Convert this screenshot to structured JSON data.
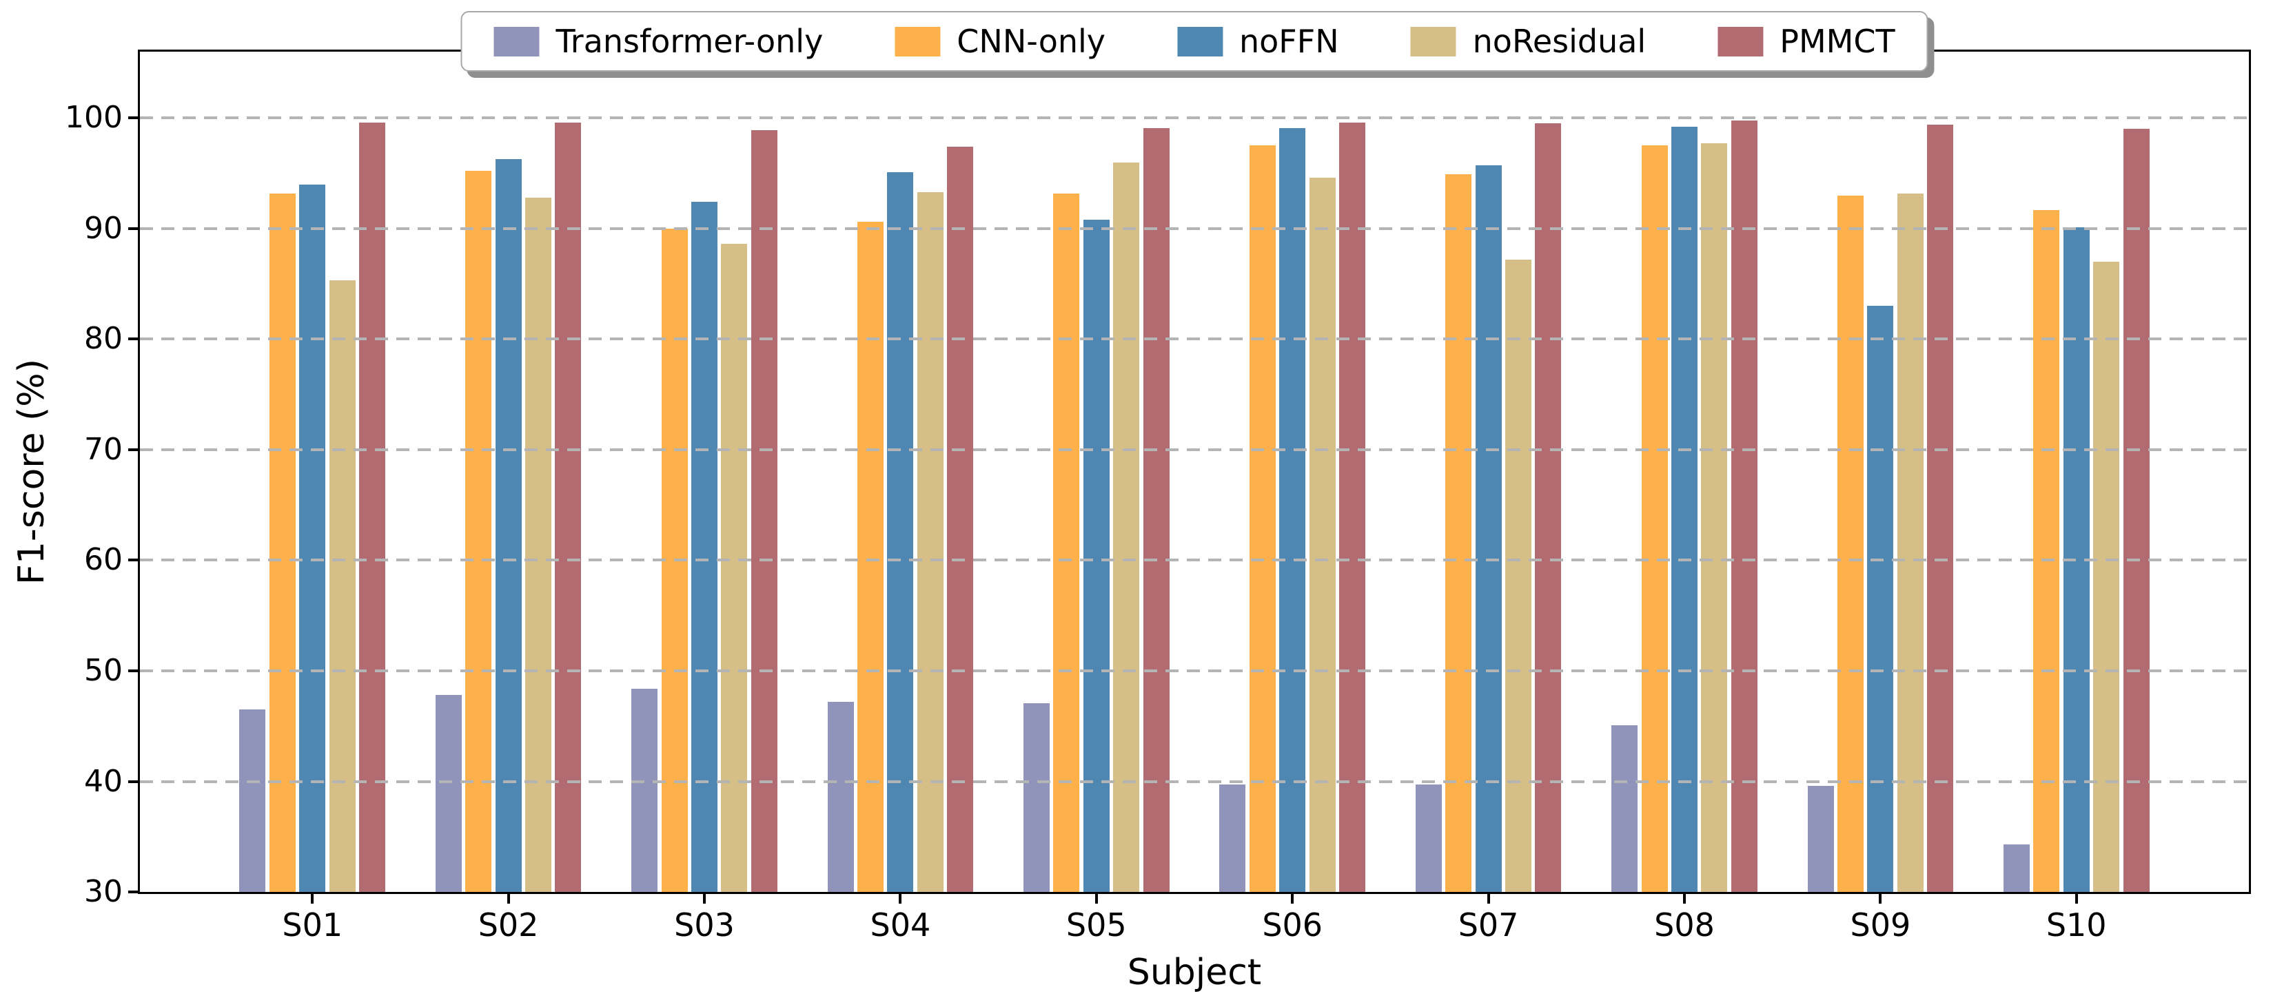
{
  "chart_data": {
    "type": "bar",
    "title": "",
    "xlabel": "Subject",
    "ylabel": "F1-score (%)",
    "categories": [
      "S01",
      "S02",
      "S03",
      "S04",
      "S05",
      "S06",
      "S07",
      "S08",
      "S09",
      "S10"
    ],
    "series": [
      {
        "name": "Transformer-only",
        "color": "#9093ba",
        "values": [
          46.5,
          47.8,
          48.4,
          47.2,
          47.1,
          39.7,
          39.7,
          45.1,
          39.6,
          34.3
        ]
      },
      {
        "name": "CNN-only",
        "color": "#feb14b",
        "values": [
          93.2,
          95.2,
          90.0,
          90.6,
          93.2,
          97.5,
          94.9,
          97.5,
          93.0,
          91.7
        ]
      },
      {
        "name": "noFFN",
        "color": "#4e87b1",
        "values": [
          94.0,
          96.3,
          92.4,
          95.1,
          90.8,
          99.1,
          95.7,
          99.2,
          83.0,
          90.1
        ]
      },
      {
        "name": "noResidual",
        "color": "#d5bf86",
        "values": [
          85.3,
          92.8,
          88.6,
          93.3,
          96.0,
          94.6,
          87.2,
          97.7,
          93.2,
          87.0
        ]
      },
      {
        "name": "PMMCT",
        "color": "#b36b72",
        "values": [
          99.6,
          99.6,
          98.9,
          97.4,
          99.1,
          99.6,
          99.5,
          99.8,
          99.4,
          99.0
        ]
      }
    ],
    "ylim": [
      30,
      106
    ],
    "yticks": [
      30,
      40,
      50,
      60,
      70,
      80,
      90,
      100
    ],
    "grid": "horizontal dashed, drawn above bars",
    "grid_color": "#b4b4b4",
    "legend_position": "top center"
  }
}
